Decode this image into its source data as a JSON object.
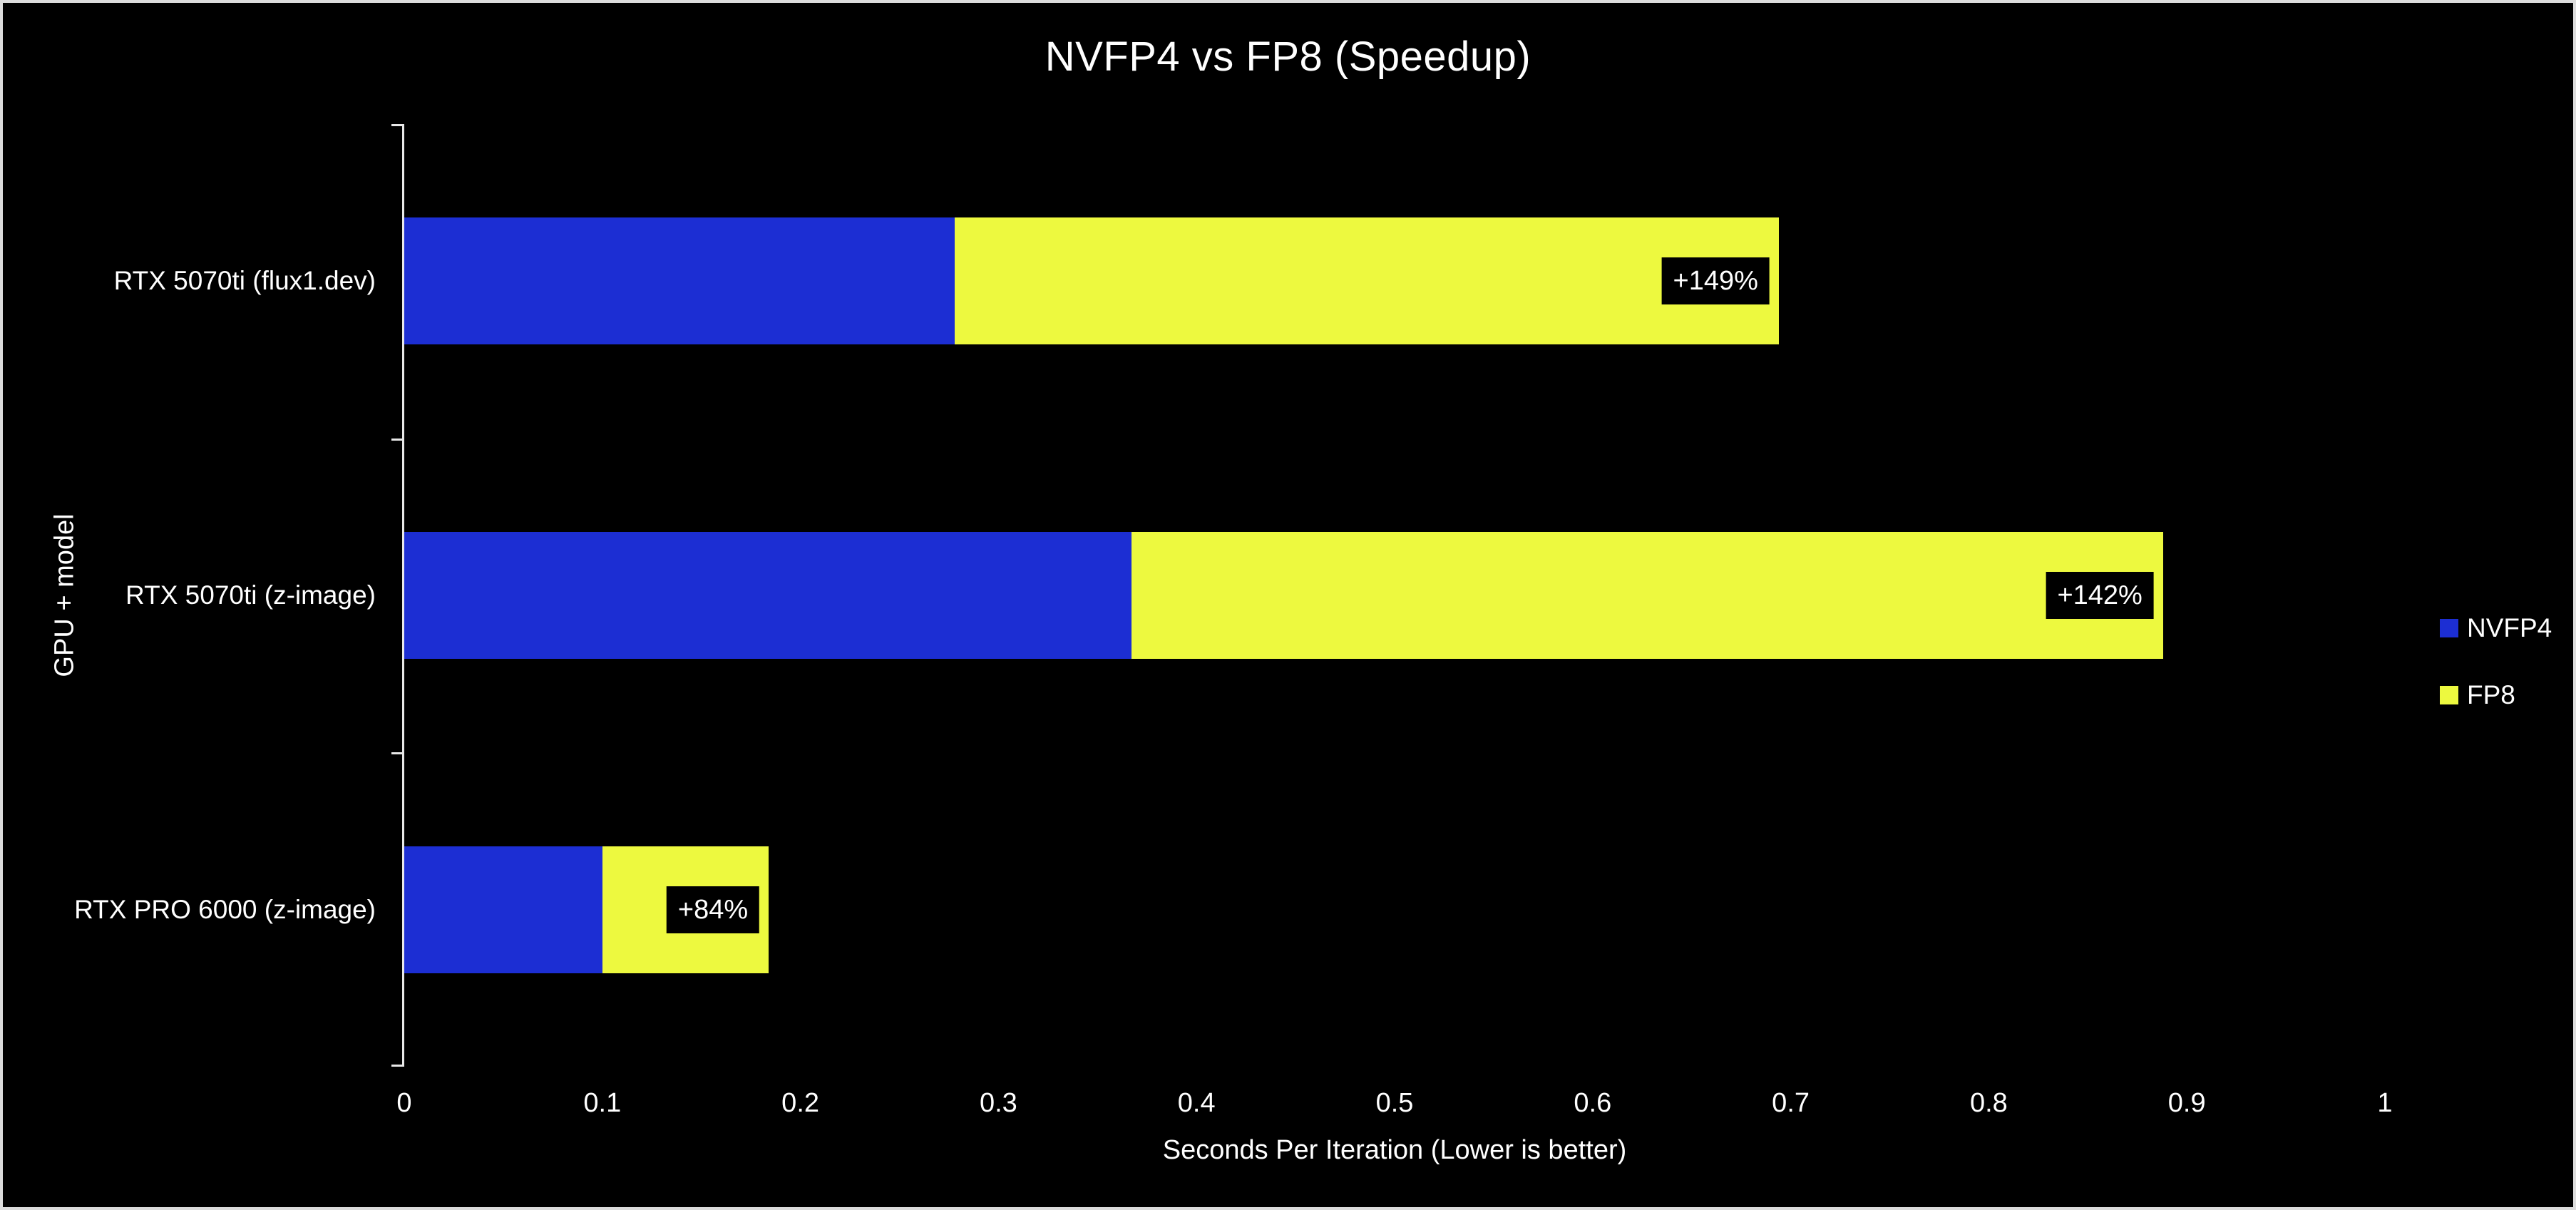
{
  "chart_data": {
    "type": "bar",
    "orientation": "horizontal",
    "overlapped": true,
    "title": "NVFP4 vs FP8 (Speedup)",
    "xlabel": "Seconds Per Iteration (Lower is better)",
    "ylabel": "GPU + model",
    "categories": [
      "RTX 5070ti (flux1.dev)",
      "RTX 5070ti (z-image)",
      "RTX PRO 6000 (z-image)"
    ],
    "series": [
      {
        "name": "NVFP4",
        "color": "#1c2ed3",
        "values": [
          0.278,
          0.367,
          0.1
        ]
      },
      {
        "name": "FP8",
        "color": "#edf93f",
        "values": [
          0.694,
          0.888,
          0.184
        ]
      }
    ],
    "bar_labels": [
      "+149%",
      "+142%",
      "+84%"
    ],
    "xlim": [
      0,
      1
    ],
    "x_ticks": [
      0,
      0.1,
      0.2,
      0.3,
      0.4,
      0.5,
      0.6,
      0.7,
      0.8,
      0.9,
      1
    ],
    "x_tick_labels": [
      "0",
      "0.1",
      "0.2",
      "0.3",
      "0.4",
      "0.5",
      "0.6",
      "0.7",
      "0.8",
      "0.9",
      "1"
    ],
    "grid": false,
    "legend": {
      "position": "right",
      "entries": [
        "NVFP4",
        "FP8"
      ]
    },
    "colors": {
      "background": "#000000",
      "text": "#ffffff",
      "axis": "#e8e8e8",
      "frame_border": "#dcdcdc",
      "label_box_background": "#000000"
    }
  }
}
